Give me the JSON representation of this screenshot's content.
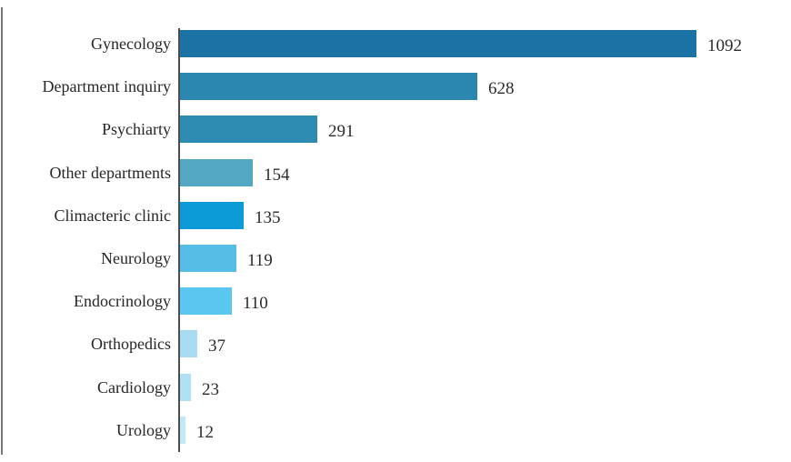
{
  "chart_data": {
    "type": "bar",
    "orientation": "horizontal",
    "title": "",
    "xlabel": "",
    "ylabel": "",
    "grid": false,
    "legend": false,
    "xlim": [
      0,
      1100
    ],
    "categories": [
      "Gynecology",
      "Department inquiry",
      "Psychiarty",
      "Other departments",
      "Climacteric clinic",
      "Neurology",
      "Endocrinology",
      "Orthopedics",
      "Cardiology",
      "Urology"
    ],
    "values": [
      1092,
      628,
      291,
      154,
      135,
      119,
      110,
      37,
      23,
      12
    ],
    "value_labels": [
      "1092",
      "628",
      "291",
      "154",
      "135",
      "119",
      "110",
      "37",
      "23",
      "12"
    ],
    "bar_colors": [
      "#1a73a4",
      "#2b87b0",
      "#2e8bb1",
      "#55a8c4",
      "#0d9bd8",
      "#55bde6",
      "#5bc6f0",
      "#a8dcf2",
      "#afe0f4",
      "#c3e8f7"
    ],
    "axis_color": "#4d4d4d",
    "text_color": "#262626"
  }
}
